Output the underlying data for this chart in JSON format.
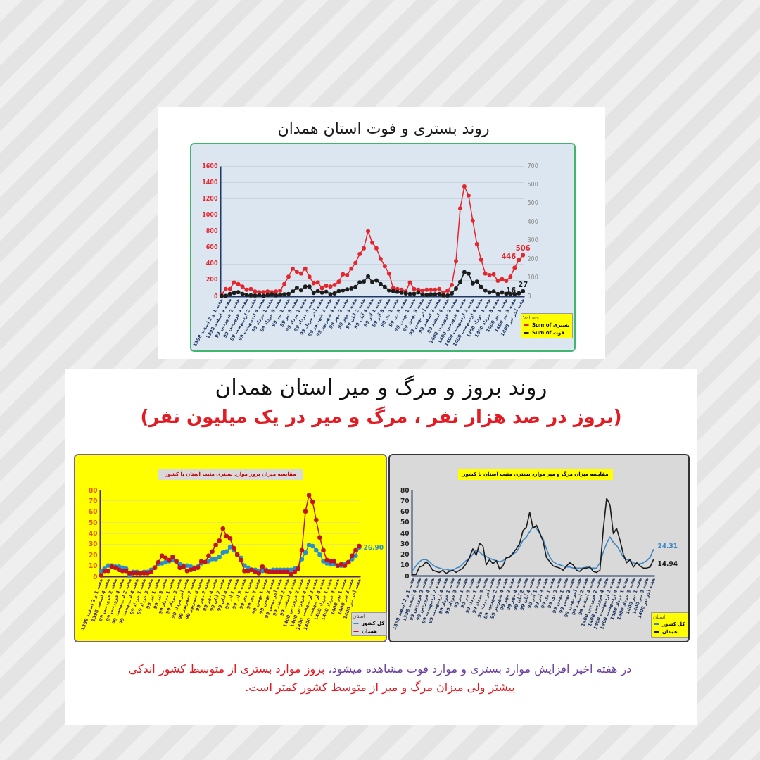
{
  "chart_data": [
    {
      "type": "line",
      "title": "روند بستری و فوت استان همدان",
      "categories": [
        "هفته 1 و 2 اسفند 1398",
        null,
        "هفته 4 اسفند 1398",
        null,
        "هفته 2 فروردین 99",
        null,
        "هفته 4 فروردین 99",
        null,
        "هفته 2 اردیبهشت 99",
        null,
        "هفته 4 اردیبهشت 99",
        null,
        "هفته 1 خرداد 99",
        null,
        "هفته 3 خرداد 99",
        null,
        "هفته 1 تیر 99",
        null,
        "هفته 3 تیر 99",
        null,
        "هفته 1 مرداد 99",
        null,
        "هفته 3 مرداد 99",
        null,
        "هفته آخر مرداد 99",
        null,
        "هفته 2 شهریور 99",
        null,
        "هفته 4 شهریور 99",
        null,
        "هفته 2 مهر 99",
        null,
        "هفته 4 مهر 99",
        null,
        "هفته 2 آبان 99",
        null,
        "هفته 4 آبان 99",
        null,
        "هفته 1 آذر 99",
        null,
        "هفته 3 آذر 99",
        null,
        "هفته 1 دی 99",
        null,
        "هفته 3 دی 99",
        null,
        "هفته 1 بهمن 99",
        null,
        "هفته 3 بهمن 99",
        null,
        "هفته آخر بهمن 99",
        null,
        "هفته 2 اسفند 99",
        null,
        "هفته 4 اسفند 99",
        null,
        "هفته 2 فروردین 1400",
        null,
        "هفته 4 فروردین 1400",
        null,
        "هفته 2 اردیبهشت 1400",
        null,
        "هفته 4 اردیبهشت 1400",
        null,
        "هفته 1 خرداد 1400",
        null,
        "هفته 3 خرداد 1400",
        null,
        "هفته 1 تیر 1400",
        null,
        "هفته 3 تیر 1400",
        null,
        "هفته آخر تیر 1400"
      ],
      "series": [
        {
          "name": "Sum of بستری",
          "color": "#e5262d",
          "values": [
            20,
            90,
            90,
            170,
            150,
            120,
            80,
            90,
            60,
            50,
            50,
            60,
            50,
            60,
            70,
            150,
            240,
            340,
            300,
            280,
            340,
            240,
            160,
            170,
            100,
            130,
            120,
            140,
            180,
            270,
            260,
            340,
            410,
            520,
            590,
            800,
            660,
            590,
            460,
            370,
            280,
            100,
            90,
            80,
            60,
            170,
            90,
            80,
            70,
            80,
            80,
            80,
            90,
            40,
            70,
            140,
            430,
            1080,
            1350,
            1240,
            930,
            640,
            450,
            280,
            260,
            270,
            190,
            210,
            190,
            240,
            350,
            446,
            506
          ],
          "value_labels": [
            null,
            null,
            null,
            null,
            null,
            null,
            null,
            null,
            null,
            null,
            null,
            null,
            null,
            null,
            null,
            null,
            null,
            null,
            null,
            null,
            null,
            null,
            null,
            null,
            null,
            null,
            null,
            null,
            null,
            null,
            null,
            null,
            null,
            null,
            null,
            null,
            null,
            null,
            null,
            null,
            null,
            null,
            null,
            null,
            null,
            null,
            null,
            null,
            null,
            null,
            null,
            null,
            null,
            null,
            null,
            null,
            null,
            null,
            null,
            null,
            null,
            null,
            null,
            null,
            null,
            null,
            null,
            null,
            null,
            null,
            null,
            "446",
            "506"
          ]
        },
        {
          "name": "Sum of فوت",
          "color": "#1c1c1c",
          "axis": "y2",
          "values": [
            2,
            2,
            13,
            18,
            22,
            13,
            8,
            5,
            4,
            7,
            2,
            7,
            11,
            5,
            8,
            11,
            13,
            26,
            46,
            33,
            52,
            52,
            18,
            28,
            20,
            24,
            11,
            15,
            28,
            32,
            37,
            42,
            50,
            75,
            79,
            107,
            77,
            85,
            66,
            50,
            32,
            28,
            24,
            20,
            15,
            13,
            14,
            21,
            10,
            8,
            11,
            11,
            13,
            5,
            4,
            15,
            42,
            77,
            130,
            122,
            69,
            79,
            50,
            32,
            21,
            26,
            13,
            21,
            13,
            12,
            12,
            16,
            27
          ],
          "value_labels": [
            null,
            null,
            null,
            null,
            null,
            null,
            null,
            null,
            null,
            null,
            null,
            null,
            null,
            null,
            null,
            null,
            null,
            null,
            null,
            null,
            null,
            null,
            null,
            null,
            null,
            null,
            null,
            null,
            null,
            null,
            null,
            null,
            null,
            null,
            null,
            null,
            null,
            null,
            null,
            null,
            null,
            null,
            null,
            null,
            null,
            null,
            null,
            null,
            null,
            null,
            null,
            null,
            null,
            null,
            null,
            null,
            null,
            null,
            null,
            null,
            null,
            null,
            null,
            null,
            null,
            null,
            null,
            null,
            null,
            null,
            null,
            "16",
            "27"
          ]
        }
      ],
      "ylim": [
        0,
        1600
      ],
      "yticks": [
        0,
        200,
        400,
        600,
        800,
        1000,
        1200,
        1400,
        1600
      ],
      "y2lim": [
        0,
        700
      ],
      "y2ticks": [
        0,
        100,
        200,
        300,
        400,
        500,
        600,
        700
      ],
      "grid": "y",
      "legend": "bottom right",
      "legend_title": "Values",
      "marker": "circle"
    },
    {
      "type": "other",
      "title": "روند بروز و مرگ و میر استان همدان",
      "subtitle": "(بروز در صد هزار نفر ، مرگ و میر در یک میلیون نفر)"
    },
    {
      "type": "line",
      "title": "مقایسه میزان بروز موارد بستری مثبت استان با کشور",
      "categories": [
        "هفته 1 و 2 اسفند 1398",
        null,
        "هفته 4 اسفند 1398",
        null,
        "هفته 2 فروردین 99",
        null,
        "هفته 4 فروردین 99",
        null,
        "هفته 2 اردیبهشت 99",
        null,
        "هفته 4 اردیبهشت 99",
        null,
        "هفته 1 خرداد 99",
        null,
        "هفته 3 خرداد 99",
        null,
        "هفته 1 تیر 99",
        null,
        "هفته 3 تیر 99",
        null,
        "هفته 1 مرداد 99",
        null,
        "هفته 3 مرداد 99",
        null,
        "هفته آخر مرداد 99",
        null,
        "هفته 2 شهریور 99",
        null,
        "هفته 4 شهریور 99",
        null,
        "هفته 2 مهر 99",
        null,
        "هفته 4 مهر 99",
        null,
        "هفته 2 آبان 99",
        null,
        "هفته 4 آبان 99",
        null,
        "هفته 1 آذر 99",
        null,
        "هفته 3 آذر 99",
        null,
        "هفته 1 دی 99",
        null,
        "هفته 3 دی 99",
        null,
        "هفته 1 بهمن 99",
        null,
        "هفته 3 بهمن 99",
        null,
        "هفته آخر بهمن 99",
        null,
        "هفته 2 اسفند 99",
        null,
        "هفته 4 اسفند 99",
        null,
        "هفته 2 فروردین 1400",
        null,
        "هفته 4 فروردین 1400",
        null,
        "هفته 2 اردیبهشت 1400",
        null,
        "هفته 4 اردیبهشت 1400",
        null,
        "هفته 1 خرداد 1400",
        null,
        "هفته 3 خرداد 1400",
        null,
        "هفته 1 تیر 1400",
        null,
        "هفته 3 تیر 1400",
        null,
        "هفته آخر تیر 1400"
      ],
      "series": [
        {
          "name": "کل کشور",
          "color": "#2a8fcf",
          "values": [
            5,
            7,
            10,
            10,
            9,
            9,
            8,
            7,
            1,
            4,
            4,
            3,
            4,
            4,
            6,
            8,
            11,
            12,
            13,
            14,
            15,
            14,
            11,
            10,
            10,
            9,
            8,
            9,
            12,
            13,
            14,
            16,
            16,
            18,
            22,
            23,
            27,
            24,
            20,
            17,
            10,
            8,
            6,
            6,
            5,
            5,
            6,
            5,
            6,
            6,
            6,
            6,
            6,
            6,
            7,
            8,
            16,
            22,
            29,
            28,
            24,
            20,
            14,
            12,
            11,
            11,
            10,
            10,
            11,
            13,
            16,
            19,
            26.9
          ],
          "value_labels": [
            null,
            null,
            null,
            null,
            null,
            null,
            null,
            null,
            null,
            null,
            null,
            null,
            null,
            null,
            null,
            null,
            null,
            null,
            null,
            null,
            null,
            null,
            null,
            null,
            null,
            null,
            null,
            null,
            null,
            null,
            null,
            null,
            null,
            null,
            null,
            null,
            null,
            null,
            null,
            null,
            null,
            null,
            null,
            null,
            null,
            null,
            null,
            null,
            null,
            null,
            null,
            null,
            null,
            null,
            null,
            null,
            null,
            null,
            null,
            null,
            null,
            null,
            null,
            null,
            null,
            null,
            null,
            null,
            null,
            null,
            null,
            null,
            "26.90"
          ]
        },
        {
          "name": "همدان",
          "color": "#c0141e",
          "values": [
            1,
            5,
            5,
            9,
            8,
            6,
            5,
            5,
            3,
            3,
            3,
            3,
            3,
            3,
            4,
            8,
            13,
            19,
            17,
            15,
            18,
            14,
            8,
            9,
            5,
            6,
            7,
            8,
            14,
            13,
            19,
            23,
            29,
            33,
            44,
            37,
            35,
            26,
            20,
            15,
            5,
            5,
            6,
            4,
            3,
            9,
            5,
            4,
            4,
            4,
            4,
            4,
            4,
            2,
            4,
            7,
            24,
            60,
            75,
            69,
            52,
            36,
            24,
            15,
            14,
            14,
            10,
            11,
            10,
            13,
            19,
            24,
            28
          ]
        }
      ],
      "ylim": [
        0,
        80
      ],
      "yticks": [
        0,
        10,
        20,
        30,
        40,
        50,
        60,
        70,
        80
      ],
      "grid": "y",
      "legend": "bottom right",
      "legend_title": "استان",
      "marker": "circle"
    },
    {
      "type": "line",
      "title": "مقایسه میزان مرگ و میر موارد بستری مثبت استان با کشور",
      "categories": [
        "هفته 1 و 2 اسفند 1398",
        null,
        "هفته 4 اسفند 1398",
        null,
        "هفته 2 فروردین 99",
        null,
        "هفته 4 فروردین 99",
        null,
        "هفته 2 اردیبهشت 99",
        null,
        "هفته 4 اردیبهشت 99",
        null,
        "هفته 1 خرداد 99",
        null,
        "هفته 3 خرداد 99",
        null,
        "هفته 1 تیر 99",
        null,
        "هفته 3 تیر 99",
        null,
        "هفته 1 مرداد 99",
        null,
        "هفته 3 مرداد 99",
        null,
        "هفته آخر مرداد 99",
        null,
        "هفته 2 شهریور 99",
        null,
        "هفته 4 شهریور 99",
        null,
        "هفته 2 مهر 99",
        null,
        "هفته 4 مهر 99",
        null,
        "هفته 2 آبان 99",
        null,
        "هفته 4 آبان 99",
        null,
        "هفته 1 آذر 99",
        null,
        "هفته 3 آذر 99",
        null,
        "هفته 1 دی 99",
        null,
        "هفته 3 دی 99",
        null,
        "هفته 1 بهمن 99",
        null,
        "هفته 3 بهمن 99",
        null,
        "هفته آخر بهمن 99",
        null,
        "هفته 2 اسفند 99",
        null,
        "هفته 4 اسفند 99",
        null,
        "هفته 2 فروردین 1400",
        null,
        "هفته 4 فروردین 1400",
        null,
        "هفته 2 اردیبهشت 1400",
        null,
        "هفته 4 اردیبهشت 1400",
        null,
        "هفته 1 خرداد 1400",
        null,
        "هفته 3 خرداد 1400",
        null,
        "هفته 1 تیر 1400",
        null,
        "هفته 3 تیر 1400",
        null,
        "هفته آخر تیر 1400"
      ],
      "series": [
        {
          "name": "کل کشور",
          "color": "#3a86c8",
          "values": [
            5,
            9,
            13,
            15,
            15,
            13,
            10,
            8,
            7,
            6,
            6,
            5,
            5,
            7,
            8,
            11,
            14,
            16,
            20,
            24,
            22,
            19,
            18,
            16,
            15,
            14,
            13,
            14,
            16,
            18,
            20,
            22,
            27,
            33,
            36,
            41,
            46,
            44,
            39,
            34,
            25,
            17,
            13,
            11,
            10,
            9,
            8,
            8,
            7,
            7,
            7,
            7,
            8,
            7,
            7,
            7,
            12,
            22,
            30,
            36,
            31,
            28,
            23,
            17,
            15,
            14,
            12,
            11,
            11,
            12,
            14,
            17,
            24.31
          ],
          "value_labels": [
            null,
            null,
            null,
            null,
            null,
            null,
            null,
            null,
            null,
            null,
            null,
            null,
            null,
            null,
            null,
            null,
            null,
            null,
            null,
            null,
            null,
            null,
            null,
            null,
            null,
            null,
            null,
            null,
            null,
            null,
            null,
            null,
            null,
            null,
            null,
            null,
            null,
            null,
            null,
            null,
            null,
            null,
            null,
            null,
            null,
            null,
            null,
            null,
            null,
            null,
            null,
            null,
            null,
            null,
            null,
            null,
            null,
            null,
            null,
            null,
            null,
            null,
            null,
            null,
            null,
            null,
            null,
            null,
            null,
            null,
            null,
            null,
            "24.31"
          ]
        },
        {
          "name": "همدان",
          "color": "#1a1a1a",
          "values": [
            1,
            1,
            8,
            9,
            13,
            10,
            5,
            4,
            3,
            5,
            2,
            4,
            5,
            3,
            5,
            7,
            11,
            17,
            25,
            19,
            30,
            28,
            10,
            15,
            11,
            14,
            6,
            9,
            17,
            17,
            21,
            25,
            30,
            42,
            45,
            59,
            44,
            47,
            40,
            32,
            17,
            13,
            9,
            8,
            7,
            5,
            9,
            12,
            10,
            5,
            4,
            7,
            7,
            8,
            4,
            3,
            5,
            43,
            72,
            66,
            39,
            44,
            33,
            20,
            12,
            15,
            8,
            12,
            9,
            7,
            7,
            8,
            14.94
          ],
          "value_labels": [
            null,
            null,
            null,
            null,
            null,
            null,
            null,
            null,
            null,
            null,
            null,
            null,
            null,
            null,
            null,
            null,
            null,
            null,
            null,
            null,
            null,
            null,
            null,
            null,
            null,
            null,
            null,
            null,
            null,
            null,
            null,
            null,
            null,
            null,
            null,
            null,
            null,
            null,
            null,
            null,
            null,
            null,
            null,
            null,
            null,
            null,
            null,
            null,
            null,
            null,
            null,
            null,
            null,
            null,
            null,
            null,
            null,
            null,
            null,
            null,
            null,
            null,
            null,
            null,
            null,
            null,
            null,
            null,
            null,
            null,
            null,
            null,
            "14.94"
          ]
        }
      ],
      "ylim": [
        0,
        80
      ],
      "yticks": [
        0,
        10,
        20,
        30,
        40,
        50,
        60,
        70,
        80
      ],
      "legend": "bottom right",
      "legend_title": "استان"
    },
    {
      "type": "other",
      "annotations": [
        "در هفته اخیر افزایش موارد بستری و موارد فوت مشاهده میشود،",
        "بروز موارد بستری از متوسط کشور اندکی",
        "بیشتر  ولی میزان مرگ و میر از متوسط کشور کمتر است."
      ]
    }
  ]
}
